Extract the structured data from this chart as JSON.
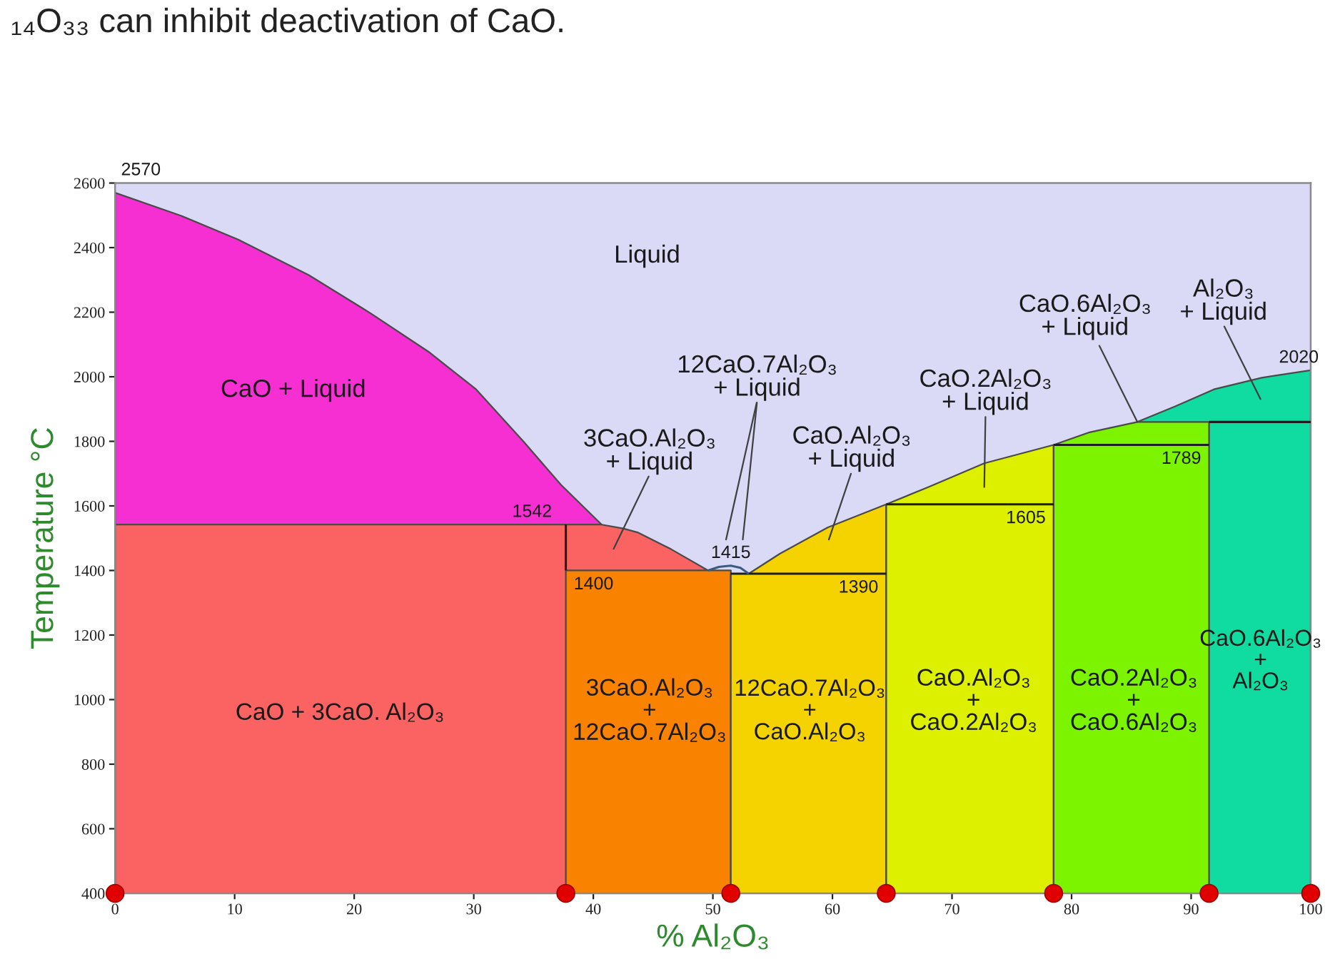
{
  "chart_data": {
    "type": "area",
    "xlabel": "% Al₂O₃",
    "ylabel": "Temperature °C",
    "xlim": [
      0,
      100
    ],
    "ylim": [
      400,
      2600
    ],
    "xticks": [
      0,
      10,
      20,
      30,
      40,
      50,
      60,
      70,
      80,
      90,
      100
    ],
    "yticks": [
      400,
      600,
      800,
      1000,
      1200,
      1400,
      1600,
      1800,
      2000,
      2200,
      2400,
      2600
    ],
    "series": [
      {
        "color": "#f52fd2",
        "x": [
          0,
          5.5,
          10.3,
          16.2,
          21.4,
          26.2,
          30.2,
          34.2,
          37.3,
          40.7
        ],
        "values": [
          2570,
          2499,
          2425,
          2315,
          2196,
          2078,
          1961,
          1798,
          1665,
          1542
        ]
      },
      {
        "color": "#fb6262",
        "x": [
          0,
          37.7,
          40.7,
          42.5,
          43.7,
          46.5,
          49.6
        ],
        "values": [
          1542,
          1542,
          1542,
          1530,
          1518,
          1466,
          1400
        ]
      },
      {
        "color": "#f98300",
        "x": [
          37.7,
          51.5
        ],
        "values": [
          1400,
          1400
        ]
      },
      {
        "color": "#f5d300",
        "x": [
          51.5,
          53.0,
          55.6,
          59.6,
          64.5
        ],
        "values": [
          1390,
          1390,
          1452,
          1533,
          1605
        ]
      },
      {
        "color": "#dcf000",
        "x": [
          64.5,
          68.0,
          72.7,
          78.5
        ],
        "values": [
          1605,
          1658,
          1732,
          1789
        ]
      },
      {
        "color": "#10dba0",
        "x": [
          85.5,
          88.7,
          91.9,
          95.9,
          100
        ],
        "values": [
          1860,
          1909,
          1961,
          1997,
          2020
        ]
      },
      {
        "color": "#7cf400",
        "x": [
          78.5,
          81.5,
          85.5,
          91.5
        ],
        "values": [
          1789,
          1828,
          1860,
          1860
        ]
      },
      {
        "type": "line",
        "color": "#1e1e1e",
        "x": [
          37.7,
          37.7
        ],
        "values": [
          1400,
          1542
        ]
      },
      {
        "type": "line",
        "color": "#1e1e1e",
        "x": [
          51.5,
          64.5
        ],
        "values": [
          1390,
          1390
        ]
      },
      {
        "type": "line",
        "color": "#1e1e1e",
        "x": [
          64.5,
          78.5
        ],
        "values": [
          1605,
          1605
        ]
      },
      {
        "type": "line",
        "color": "#1e1e1e",
        "x": [
          78.5,
          91.5
        ],
        "values": [
          1789,
          1789
        ]
      },
      {
        "type": "line",
        "color": "#1e1e1e",
        "x": [
          91.5,
          100
        ],
        "values": [
          1860,
          1860
        ]
      },
      {
        "type": "line",
        "color": "#3a5a80",
        "x": [
          49.6,
          50.5,
          51.5,
          52.3,
          53.0
        ],
        "values": [
          1400,
          1411,
          1415,
          1408,
          1390
        ]
      },
      {
        "type": "scatter",
        "color": "#e00000",
        "marker": "circle",
        "x": [
          0,
          37.7,
          51.5,
          64.5,
          78.5,
          91.5,
          100
        ],
        "values": [
          400,
          400,
          400,
          400,
          400,
          400,
          400
        ]
      }
    ],
    "annotations": [
      "₁₄O₃₃ can inhibit deactivation of CaO.",
      "Liquid",
      "CaO + Liquid",
      "3CaO.Al₂O₃\n+ Liquid",
      "12CaO.7Al₂O₃\n+ Liquid",
      "CaO.Al₂O₃\n+ Liquid",
      "CaO.2Al₂O₃\n+ Liquid",
      {
        "text": "CaO.6Al₂O₃\n+ Liquid",
        "x": 85.5,
        "y": 1860
      },
      "Al₂O₃\n+ Liquid",
      "CaO + 3CaO. Al₂O₃",
      "3CaO.Al₂O₃\n+\n12CaO.7Al₂O₃",
      "12CaO.7Al₂O₃\n+\nCaO.Al₂O₃",
      "CaO.Al₂O₃\n+\nCaO.2Al₂O₃",
      "CaO.2Al₂O₃\n+\nCaO.6Al₂O₃",
      "CaO.6Al₂O₃\n+\nAl₂O₃",
      {
        "text": "2570",
        "x": 0,
        "y": 2570
      },
      {
        "text": "1542",
        "x": 37.7,
        "y": 1542
      },
      {
        "text": "1400",
        "x": 37.7,
        "y": 1400
      },
      {
        "text": "1415",
        "x": 51.5,
        "y": 1415
      },
      {
        "text": "1390",
        "x": 64.5,
        "y": 1390
      },
      {
        "text": "1605",
        "x": 78.5,
        "y": 1605
      },
      {
        "text": "1789",
        "x": 91.5,
        "y": 1789
      },
      {
        "text": "2020",
        "x": 100,
        "y": 2020
      }
    ]
  }
}
